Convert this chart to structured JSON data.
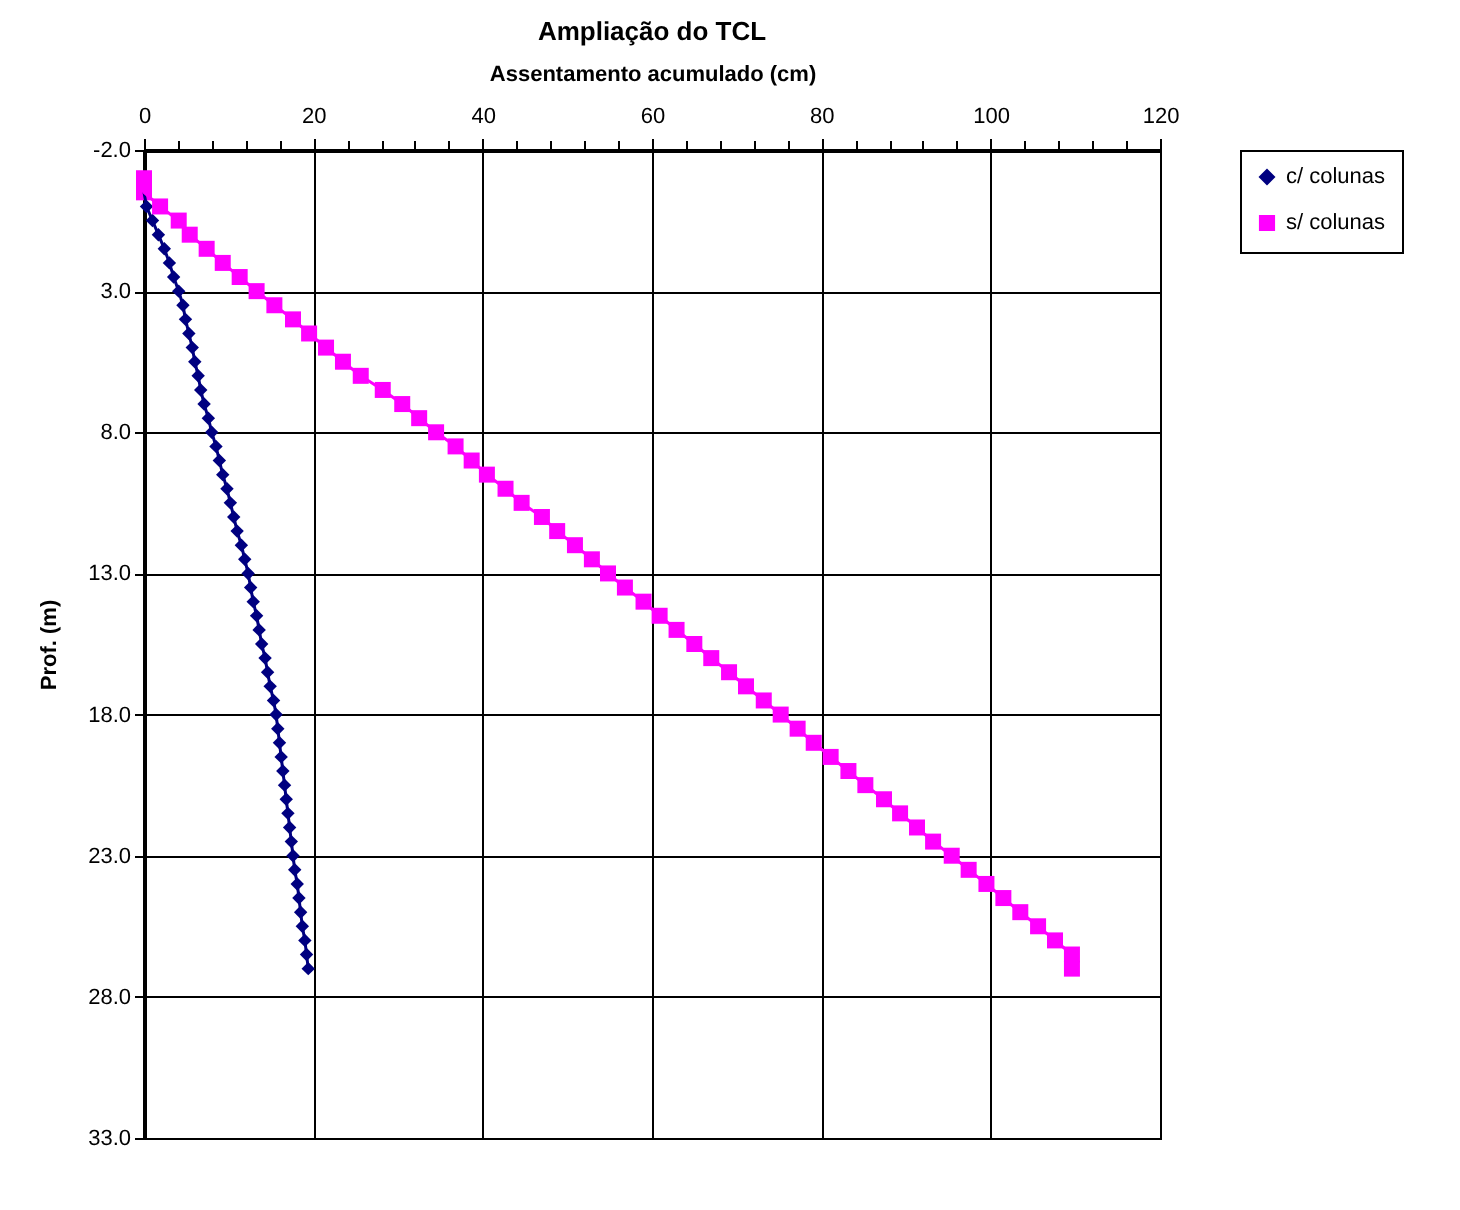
{
  "chart_data": {
    "type": "line",
    "title": "Ampliação do TCL",
    "xlabel": "Assentamento acumulado (cm)",
    "ylabel": "Prof. (m)",
    "xlim": [
      0,
      120
    ],
    "xticks": [
      0,
      {
        "value": 4,
        "label": null
      },
      {
        "value": 8,
        "label": null
      },
      {
        "value": 12,
        "label": null
      },
      {
        "value": 16,
        "label": null
      },
      20,
      {
        "value": 24,
        "label": null
      },
      {
        "value": 28,
        "label": null
      },
      {
        "value": 32,
        "label": null
      },
      {
        "value": 36,
        "label": null
      },
      40,
      {
        "value": 44,
        "label": null
      },
      {
        "value": 48,
        "label": null
      },
      {
        "value": 52,
        "label": null
      },
      {
        "value": 56,
        "label": null
      },
      60,
      {
        "value": 64,
        "label": null
      },
      {
        "value": 68,
        "label": null
      },
      {
        "value": 72,
        "label": null
      },
      {
        "value": 76,
        "label": null
      },
      80,
      {
        "value": 84,
        "label": null
      },
      {
        "value": 88,
        "label": null
      },
      {
        "value": 92,
        "label": null
      },
      {
        "value": 96,
        "label": null
      },
      100,
      {
        "value": 104,
        "label": null
      },
      {
        "value": 108,
        "label": null
      },
      {
        "value": 112,
        "label": null
      },
      {
        "value": 116,
        "label": null
      },
      120
    ],
    "ylim": [
      33,
      -2
    ],
    "yticks": [
      {
        "value": -2,
        "label": "-2.0"
      },
      {
        "value": 3,
        "label": "3.0"
      },
      {
        "value": 8,
        "label": "8.0"
      },
      {
        "value": 13,
        "label": "13.0"
      },
      {
        "value": 18,
        "label": "18.0"
      },
      {
        "value": 23,
        "label": "23.0"
      },
      {
        "value": 28,
        "label": "28.0"
      },
      {
        "value": 33,
        "label": "33.0"
      }
    ],
    "grid": true,
    "legend": "right",
    "series": [
      {
        "name": "c/ colunas",
        "color": "#000080",
        "marker": "diamond",
        "x": [
          0,
          0.3,
          1.0,
          1.7,
          2.4,
          3.0,
          3.5,
          4.1,
          4.6,
          4.9,
          5.3,
          5.7,
          6.0,
          6.4,
          6.7,
          7.1,
          7.6,
          8.0,
          8.5,
          8.9,
          9.3,
          9.8,
          10.2,
          10.6,
          11.0,
          11.5,
          11.9,
          12.3,
          12.6,
          12.9,
          13.3,
          13.6,
          13.9,
          14.3,
          14.6,
          14.9,
          15.3,
          15.6,
          15.8,
          16.0,
          16.2,
          16.4,
          16.6,
          16.8,
          17.0,
          17.2,
          17.4,
          17.6,
          17.8,
          18.1,
          18.3,
          18.5,
          18.7,
          19.0,
          19.2,
          19.4
        ],
        "values": [
          -0.5,
          0,
          0.5,
          1,
          1.5,
          2,
          2.5,
          3,
          3.5,
          4,
          4.5,
          5,
          5.5,
          6,
          6.5,
          7,
          7.5,
          8,
          8.5,
          9,
          9.5,
          10,
          10.5,
          11,
          11.5,
          12,
          12.5,
          13,
          13.5,
          14,
          14.5,
          15,
          15.5,
          16,
          16.5,
          17,
          17.5,
          18,
          18.5,
          19,
          19.5,
          20,
          20.5,
          21,
          21.5,
          22,
          22.5,
          23,
          23.5,
          24,
          24.5,
          25,
          25.5,
          26,
          26.5,
          27
        ]
      },
      {
        "name": "s/ colunas",
        "color": "#ff00ff",
        "marker": "square",
        "x": [
          0,
          0,
          1.9,
          4.1,
          5.4,
          7.4,
          9.3,
          11.3,
          13.3,
          15.4,
          17.6,
          19.5,
          21.5,
          23.5,
          25.6,
          28.2,
          30.5,
          32.5,
          34.5,
          36.8,
          38.7,
          40.5,
          42.7,
          44.6,
          47.0,
          48.8,
          50.9,
          52.9,
          54.8,
          56.8,
          59.0,
          60.9,
          62.9,
          65.0,
          67.0,
          69.1,
          71.1,
          73.2,
          75.2,
          77.2,
          79.1,
          81.1,
          83.2,
          85.2,
          87.4,
          89.3,
          91.3,
          93.2,
          95.4,
          97.4,
          99.5,
          101.5,
          103.5,
          105.6,
          107.6,
          109.6,
          109.6
        ],
        "values": [
          -1,
          -0.5,
          0,
          0.5,
          1,
          1.5,
          2,
          2.5,
          3,
          3.5,
          4,
          4.5,
          5,
          5.5,
          6,
          6.5,
          7,
          7.5,
          8,
          8.5,
          9,
          9.5,
          10,
          10.5,
          11,
          11.5,
          12,
          12.5,
          13,
          13.5,
          14,
          14.5,
          15,
          15.5,
          16,
          16.5,
          17,
          17.5,
          18,
          18.5,
          19,
          19.5,
          20,
          20.5,
          21,
          21.5,
          22,
          22.5,
          23,
          23.5,
          24,
          24.5,
          25,
          25.5,
          26,
          26.5,
          27
        ]
      }
    ]
  }
}
